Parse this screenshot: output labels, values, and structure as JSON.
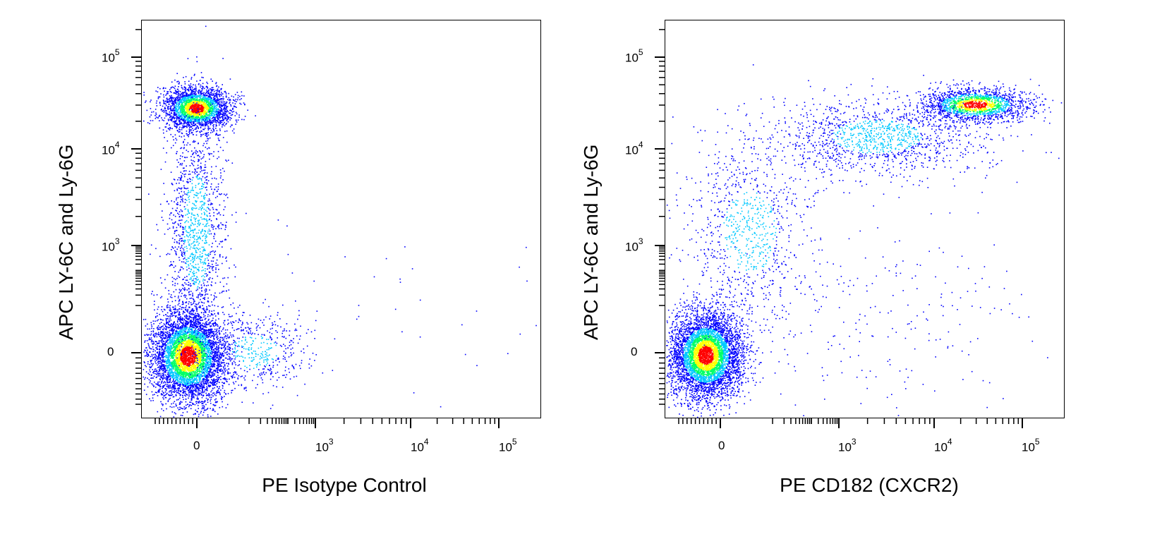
{
  "chart_data": [
    {
      "type": "scatter",
      "subtype": "flow-cytometry-density-dot-plot",
      "xlabel": "PE Isotype Control",
      "ylabel": "APC  LY-6C and Ly-6G",
      "x_scale": "biexponential",
      "y_scale": "biexponential",
      "xlim": [
        -200,
        200000
      ],
      "ylim": [
        -200,
        200000
      ],
      "x_ticks": [
        {
          "value": 0,
          "label": "0"
        },
        {
          "value": 1000,
          "label": "10",
          "exp": "3"
        },
        {
          "value": 10000,
          "label": "10",
          "exp": "4"
        },
        {
          "value": 100000,
          "label": "10",
          "exp": "5"
        }
      ],
      "y_ticks": [
        {
          "value": 0,
          "label": "0"
        },
        {
          "value": 1000,
          "label": "10",
          "exp": "3"
        },
        {
          "value": 10000,
          "label": "10",
          "exp": "4"
        },
        {
          "value": 100000,
          "label": "10",
          "exp": "5"
        }
      ],
      "populations": [
        {
          "center_x": 10,
          "center_y": 0,
          "n": 5200
        },
        {
          "center_x": 0,
          "center_y": 28000,
          "n": 2600
        },
        {
          "center_x": 0,
          "center_y": 2500,
          "n": 1400
        },
        {
          "center_x": 150,
          "center_y": 80,
          "n": 500
        },
        {
          "center_x": 5000,
          "center_y": 300,
          "n": 40
        }
      ],
      "grid": false,
      "legend": "none"
    },
    {
      "type": "scatter",
      "subtype": "flow-cytometry-density-dot-plot",
      "xlabel": "PE CD182 (CXCR2)",
      "ylabel": "APC  LY-6C and Ly-6G",
      "x_scale": "biexponential",
      "y_scale": "biexponential",
      "xlim": [
        -200,
        200000
      ],
      "ylim": [
        -200,
        200000
      ],
      "x_ticks": [
        {
          "value": 0,
          "label": "0"
        },
        {
          "value": 1000,
          "label": "10",
          "exp": "3"
        },
        {
          "value": 10000,
          "label": "10",
          "exp": "4"
        },
        {
          "value": 100000,
          "label": "10",
          "exp": "5"
        }
      ],
      "y_ticks": [
        {
          "value": 0,
          "label": "0"
        },
        {
          "value": 1000,
          "label": "10",
          "exp": "3"
        },
        {
          "value": 10000,
          "label": "10",
          "exp": "4"
        },
        {
          "value": 100000,
          "label": "10",
          "exp": "5"
        }
      ],
      "populations": [
        {
          "center_x": 0,
          "center_y": 0,
          "n": 5200
        },
        {
          "center_x": 25000,
          "center_y": 30000,
          "n": 1700
        },
        {
          "center_x": 2000,
          "center_y": 15000,
          "n": 1300
        },
        {
          "center_x": 200,
          "center_y": 2000,
          "n": 900
        },
        {
          "center_x": 3000,
          "center_y": 200,
          "n": 250
        }
      ],
      "grid": false,
      "legend": "none"
    }
  ],
  "colors": {
    "density_low": "#0000ff",
    "density_mid": "#00c8ff",
    "density_high_1": "#00ff66",
    "density_high_2": "#ffff00",
    "density_peak": "#ff0000"
  }
}
